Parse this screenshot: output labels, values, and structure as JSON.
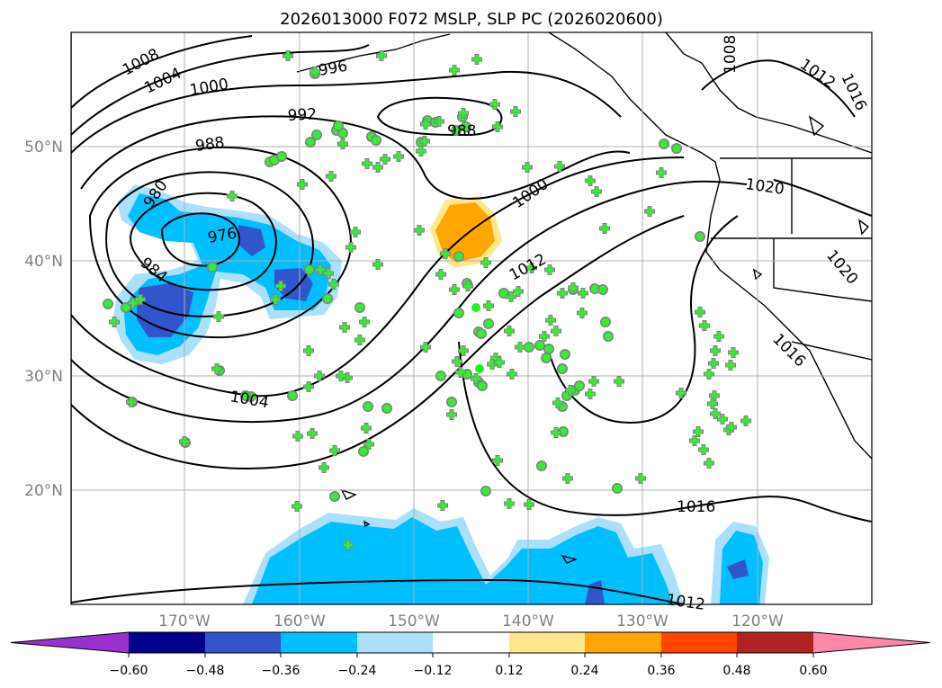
{
  "title": "2026013000 F072 MSLP, SLP PC (2026020600)",
  "axes": {
    "lat_labels": [
      "50°N",
      "40°N",
      "30°N",
      "20°N"
    ],
    "lon_labels": [
      "170°W",
      "160°W",
      "150°W",
      "140°W",
      "130°W",
      "120°W"
    ]
  },
  "contour_labels": [
    "1008",
    "1004",
    "1000",
    "996",
    "992",
    "988",
    "980",
    "976",
    "984",
    "1004",
    "1000",
    "1012",
    "988",
    "1008",
    "1012",
    "1016",
    "1020",
    "1020",
    "1016",
    "1016",
    "1012"
  ],
  "colorbar": {
    "ticks": [
      "−0.60",
      "−0.48",
      "−0.36",
      "−0.24",
      "−0.12",
      "0.12",
      "0.24",
      "0.36",
      "0.48",
      "0.60"
    ],
    "colors": [
      "#9932cc",
      "#00008b",
      "#3355cc",
      "#00bfff",
      "#aae0fa",
      "#ffffff",
      "#ffe88c",
      "#ffa500",
      "#ff4500",
      "#b22222",
      "#ff88aa"
    ]
  },
  "colors": {
    "station_fill": "#33ee33",
    "station_edge": "#808080",
    "contour": "#000000",
    "grid": "#b0b0b0"
  }
}
